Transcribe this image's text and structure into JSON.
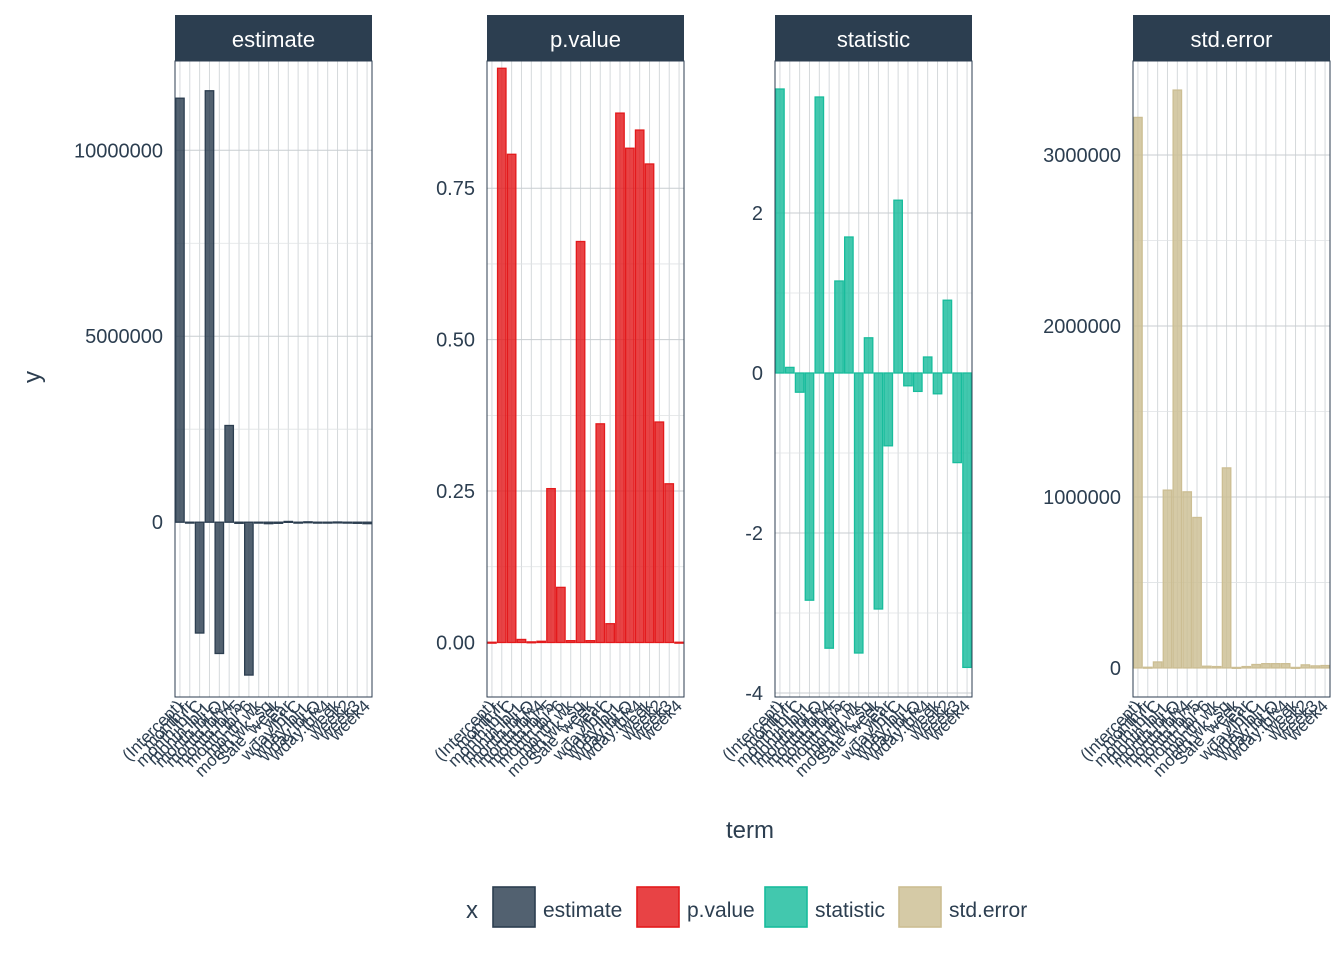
{
  "chart_data": {
    "type": "bar",
    "facet_by": "x",
    "xlabel": "term",
    "ylabel": "y",
    "terms": [
      "(Intercept)",
      "month.fr",
      "month.lbl.C",
      "month.lbl.L",
      "month.lbl.Q",
      "month.lbl^4",
      "month.lbl^5",
      "month.lbl^6",
      "month.wk",
      "month.wk_sq",
      "Sale_week",
      "year",
      "wday.lbl.C",
      "wday.lbl.L",
      "wday.lbl.Q",
      "wday.lbl^4",
      "week",
      "week2",
      "week3",
      "week4"
    ],
    "facets": [
      {
        "name": "estimate",
        "color": "#2c3e50",
        "ylim": [
          -4700000,
          12400000
        ],
        "yticks": [
          0,
          5000000,
          10000000
        ],
        "ytick_labels": [
          "0",
          "5000000",
          "10000000"
        ],
        "values": [
          11400000,
          -20000,
          -2980000,
          11600000,
          -3530000,
          2600000,
          -30000,
          -4110000,
          -10000,
          -40000,
          -30000,
          20000,
          -10000,
          10000,
          -5000,
          -20000,
          5000,
          -10000,
          -30000,
          -40000
        ]
      },
      {
        "name": "p.value",
        "color": "#e31a1c",
        "ylim": [
          -0.09,
          0.96
        ],
        "yticks": [
          0,
          0.25,
          0.5,
          0.75
        ],
        "ytick_labels": [
          "0.00",
          "0.25",
          "0.50",
          "0.75"
        ],
        "values": [
          0.0004,
          0.948,
          0.806,
          0.005,
          0.001,
          0.002,
          0.254,
          0.091,
          0.003,
          0.662,
          0.003,
          0.361,
          0.031,
          0.874,
          0.816,
          0.846,
          0.79,
          0.364,
          0.262,
          0.0004
        ]
      },
      {
        "name": "statistic",
        "color": "#18bc9c",
        "ylim": [
          -4.05,
          3.9
        ],
        "yticks": [
          -4,
          -2,
          0,
          2
        ],
        "ytick_labels": [
          "-4",
          "-2",
          "0",
          "2"
        ],
        "values": [
          3.55,
          0.07,
          -0.24,
          -2.84,
          3.45,
          -3.44,
          1.15,
          1.7,
          -3.5,
          0.44,
          -2.95,
          -0.91,
          2.16,
          -0.16,
          -0.23,
          0.2,
          -0.26,
          0.91,
          -1.12,
          -3.68
        ]
      },
      {
        "name": "std.error",
        "color": "#ccbe93",
        "ylim": [
          -170000,
          3550000
        ],
        "yticks": [
          0,
          1000000,
          2000000,
          3000000
        ],
        "ytick_labels": [
          "0",
          "1000000",
          "2000000",
          "3000000"
        ],
        "values": [
          3220000,
          4000,
          35000,
          1040000,
          3380000,
          1030000,
          880000,
          10000,
          8000,
          1170000,
          3000,
          8000,
          20000,
          25000,
          25000,
          25000,
          3000,
          18000,
          12000,
          14000
        ]
      }
    ],
    "legend": {
      "title": "x",
      "position": "bottom",
      "items": [
        {
          "label": "estimate",
          "color": "#2c3e50"
        },
        {
          "label": "p.value",
          "color": "#e31a1c"
        },
        {
          "label": "statistic",
          "color": "#18bc9c"
        },
        {
          "label": "std.error",
          "color": "#ccbe93"
        }
      ]
    }
  }
}
